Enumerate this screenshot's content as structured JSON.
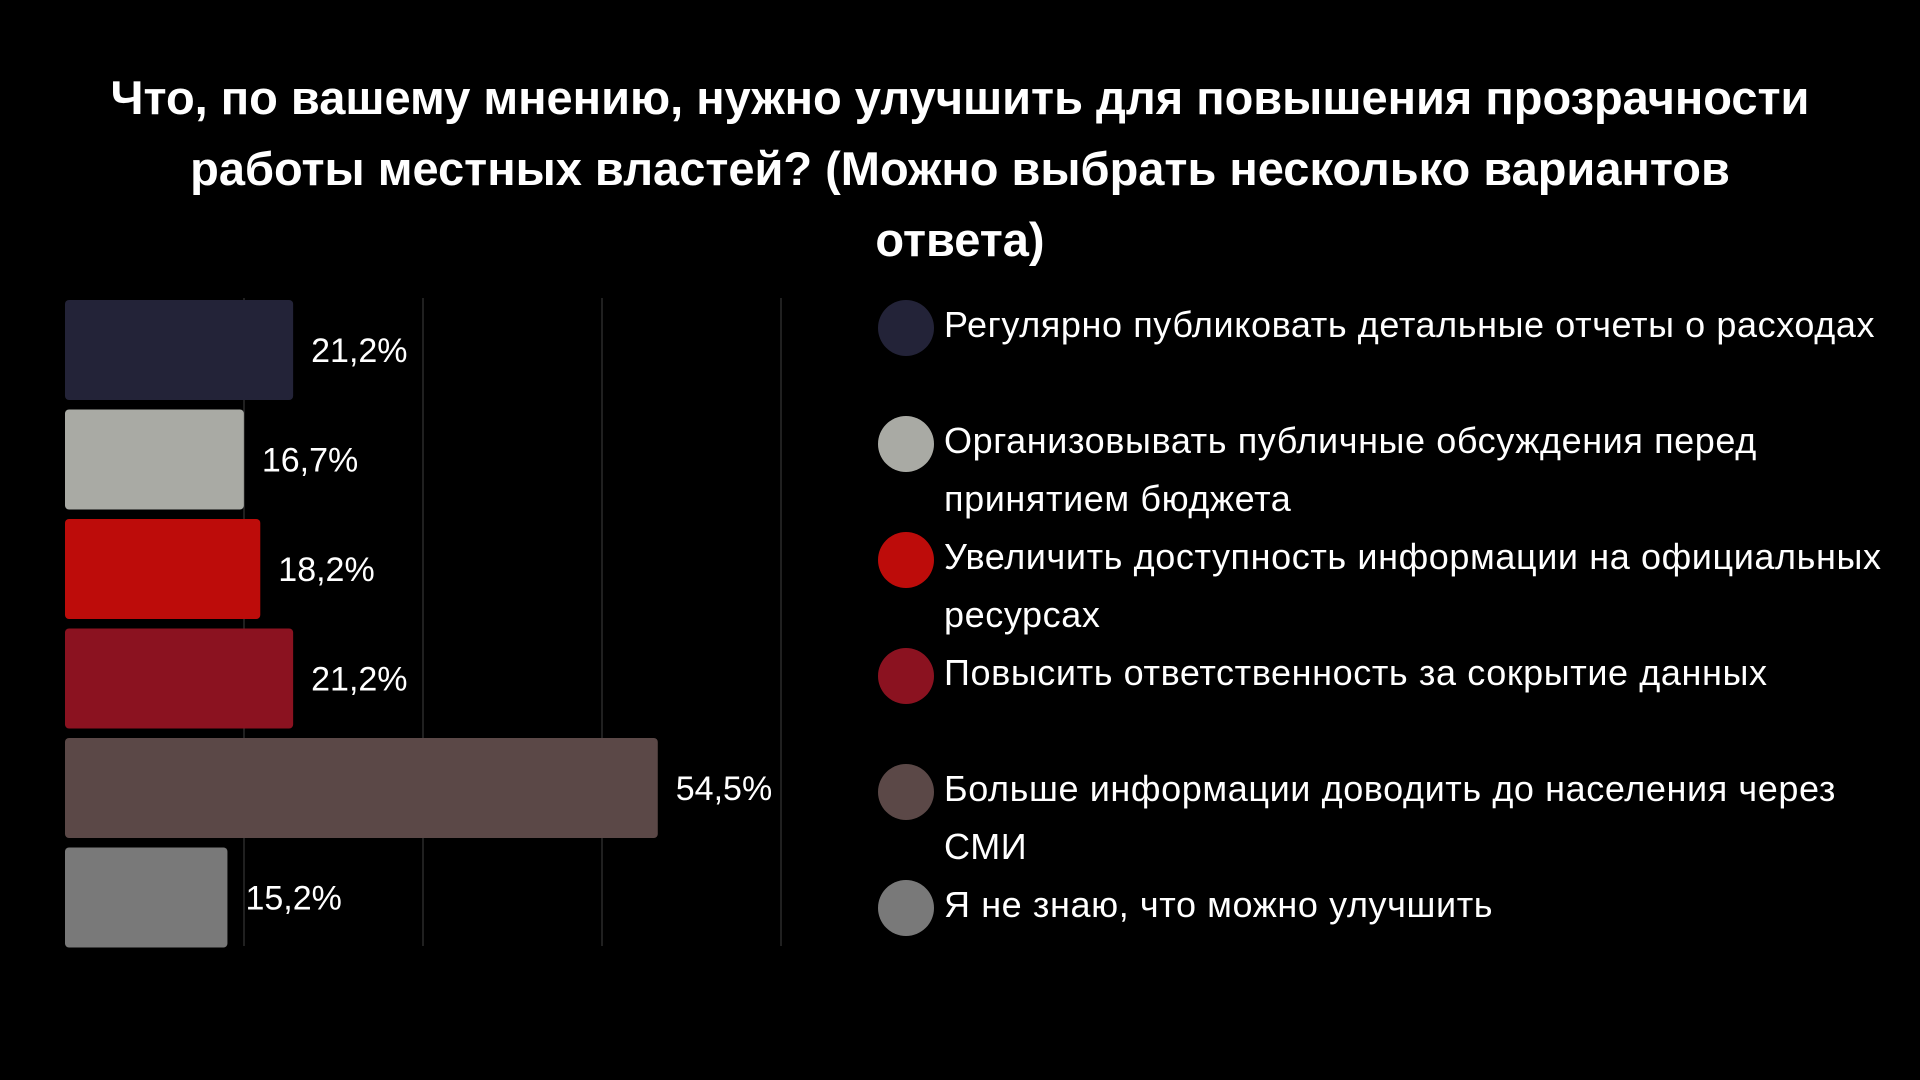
{
  "chart_data": {
    "type": "bar",
    "orientation": "horizontal",
    "title": "Что, по вашему мнению, нужно улучшить для повышения прозрачности работы местных властей? (Можно выбрать несколько вариантов ответа)",
    "xlim": [
      0,
      60
    ],
    "grid": true,
    "legend_position": "right",
    "categories": [
      "Регулярно публиковать детальные отчеты о расходах",
      "Организовывать публичные обсуждения перед принятием бюджета",
      "Увеличить доступность информации на официальных ресурсах",
      "Повысить ответственность за сокрытие данных",
      "Больше информации доводить до населения через СМИ",
      "Я не знаю, что можно улучшить"
    ],
    "values": [
      21.2,
      16.7,
      18.2,
      21.2,
      54.5,
      15.2
    ],
    "value_labels": [
      "21,2%",
      "16,7%",
      "18,2%",
      "21,2%",
      "54,5%",
      "15,2%"
    ],
    "colors": [
      "#232338",
      "#a9aaa4",
      "#bd0c0a",
      "#8b1220",
      "#5b4847",
      "#797979"
    ]
  },
  "colors": {
    "background": "#000000",
    "text": "#ffffff",
    "grid": "#2a2a2a"
  }
}
